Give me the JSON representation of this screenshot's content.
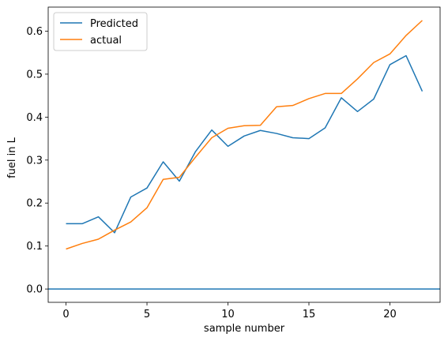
{
  "chart_data": {
    "type": "line",
    "title": "",
    "xlabel": "sample number",
    "ylabel": "fuel in L",
    "xlim": [
      -1.1,
      23.1
    ],
    "ylim": [
      -0.031,
      0.656
    ],
    "xticks": [
      0,
      5,
      10,
      15,
      20
    ],
    "yticks": [
      0.0,
      0.1,
      0.2,
      0.3,
      0.4,
      0.5,
      0.6
    ],
    "grid": false,
    "legend": "top-left",
    "hline": {
      "y": 0.0,
      "color": "#1f77b4"
    },
    "x": [
      0,
      1,
      2,
      3,
      4,
      5,
      6,
      7,
      8,
      9,
      10,
      11,
      12,
      13,
      14,
      15,
      16,
      17,
      18,
      19,
      20,
      21,
      22
    ],
    "series": [
      {
        "name": "Predicted",
        "color": "#1f77b4",
        "values": [
          0.152,
          0.152,
          0.168,
          0.131,
          0.214,
          0.235,
          0.296,
          0.251,
          0.32,
          0.37,
          0.332,
          0.356,
          0.369,
          0.362,
          0.352,
          0.35,
          0.375,
          0.445,
          0.413,
          0.442,
          0.522,
          0.543,
          0.46
        ]
      },
      {
        "name": "actual",
        "color": "#ff7f0e",
        "values": [
          0.093,
          0.106,
          0.116,
          0.137,
          0.156,
          0.189,
          0.255,
          0.26,
          0.307,
          0.352,
          0.374,
          0.38,
          0.381,
          0.424,
          0.427,
          0.443,
          0.455,
          0.455,
          0.489,
          0.527,
          0.547,
          0.59,
          0.625
        ]
      }
    ]
  }
}
